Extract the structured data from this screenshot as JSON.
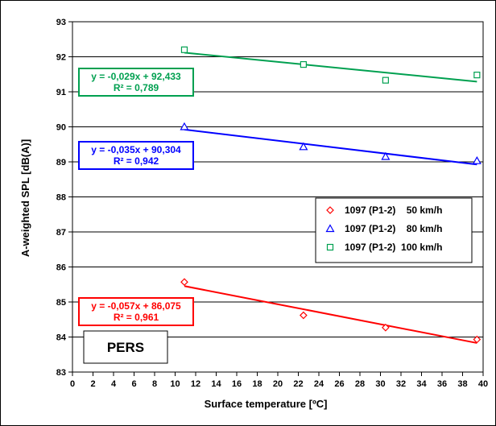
{
  "chart_data": {
    "type": "scatter",
    "xlabel": "Surface temperature  [ºC]",
    "ylabel": "A-weighted SPL  [dB(A)]",
    "xlim": [
      0,
      40
    ],
    "ylim": [
      83,
      93
    ],
    "x_ticks": [
      "0",
      "2",
      "4",
      "6",
      "8",
      "10",
      "12",
      "14",
      "16",
      "18",
      "20",
      "22",
      "24",
      "26",
      "28",
      "30",
      "32",
      "34",
      "36",
      "38",
      "40"
    ],
    "y_ticks": [
      "83",
      "84",
      "85",
      "86",
      "87",
      "88",
      "89",
      "90",
      "91",
      "92",
      "93"
    ],
    "grid": "horizontal",
    "legend_position": "right",
    "annotation": "PERS",
    "series": [
      {
        "name": "1097 (P1-2)    50 km/h",
        "marker": "diamond",
        "color": "#ff0000",
        "points": [
          [
            10.9,
            85.57
          ],
          [
            22.5,
            84.62
          ],
          [
            30.5,
            84.27
          ],
          [
            39.4,
            83.93
          ]
        ],
        "trend": {
          "slope": -0.057,
          "intercept": 86.075
        },
        "equation": "y = -0,057x + 86,075",
        "r2": "R² = 0,961"
      },
      {
        "name": "1097 (P1-2)    80 km/h",
        "marker": "triangle",
        "color": "#0000ff",
        "points": [
          [
            10.9,
            90.0
          ],
          [
            22.5,
            89.43
          ],
          [
            30.5,
            89.15
          ],
          [
            39.4,
            89.03
          ]
        ],
        "trend": {
          "slope": -0.035,
          "intercept": 90.304
        },
        "equation": "y = -0,035x + 90,304",
        "r2": "R² = 0,942"
      },
      {
        "name": "1097 (P1-2)  100 km/h",
        "marker": "square",
        "color": "#00a050",
        "points": [
          [
            10.9,
            92.2
          ],
          [
            22.5,
            91.78
          ],
          [
            30.5,
            91.33
          ],
          [
            39.4,
            91.48
          ]
        ],
        "trend": {
          "slope": -0.029,
          "intercept": 92.433
        },
        "equation": "y = -0,029x + 92,433",
        "r2": "R² = 0,789"
      }
    ]
  }
}
